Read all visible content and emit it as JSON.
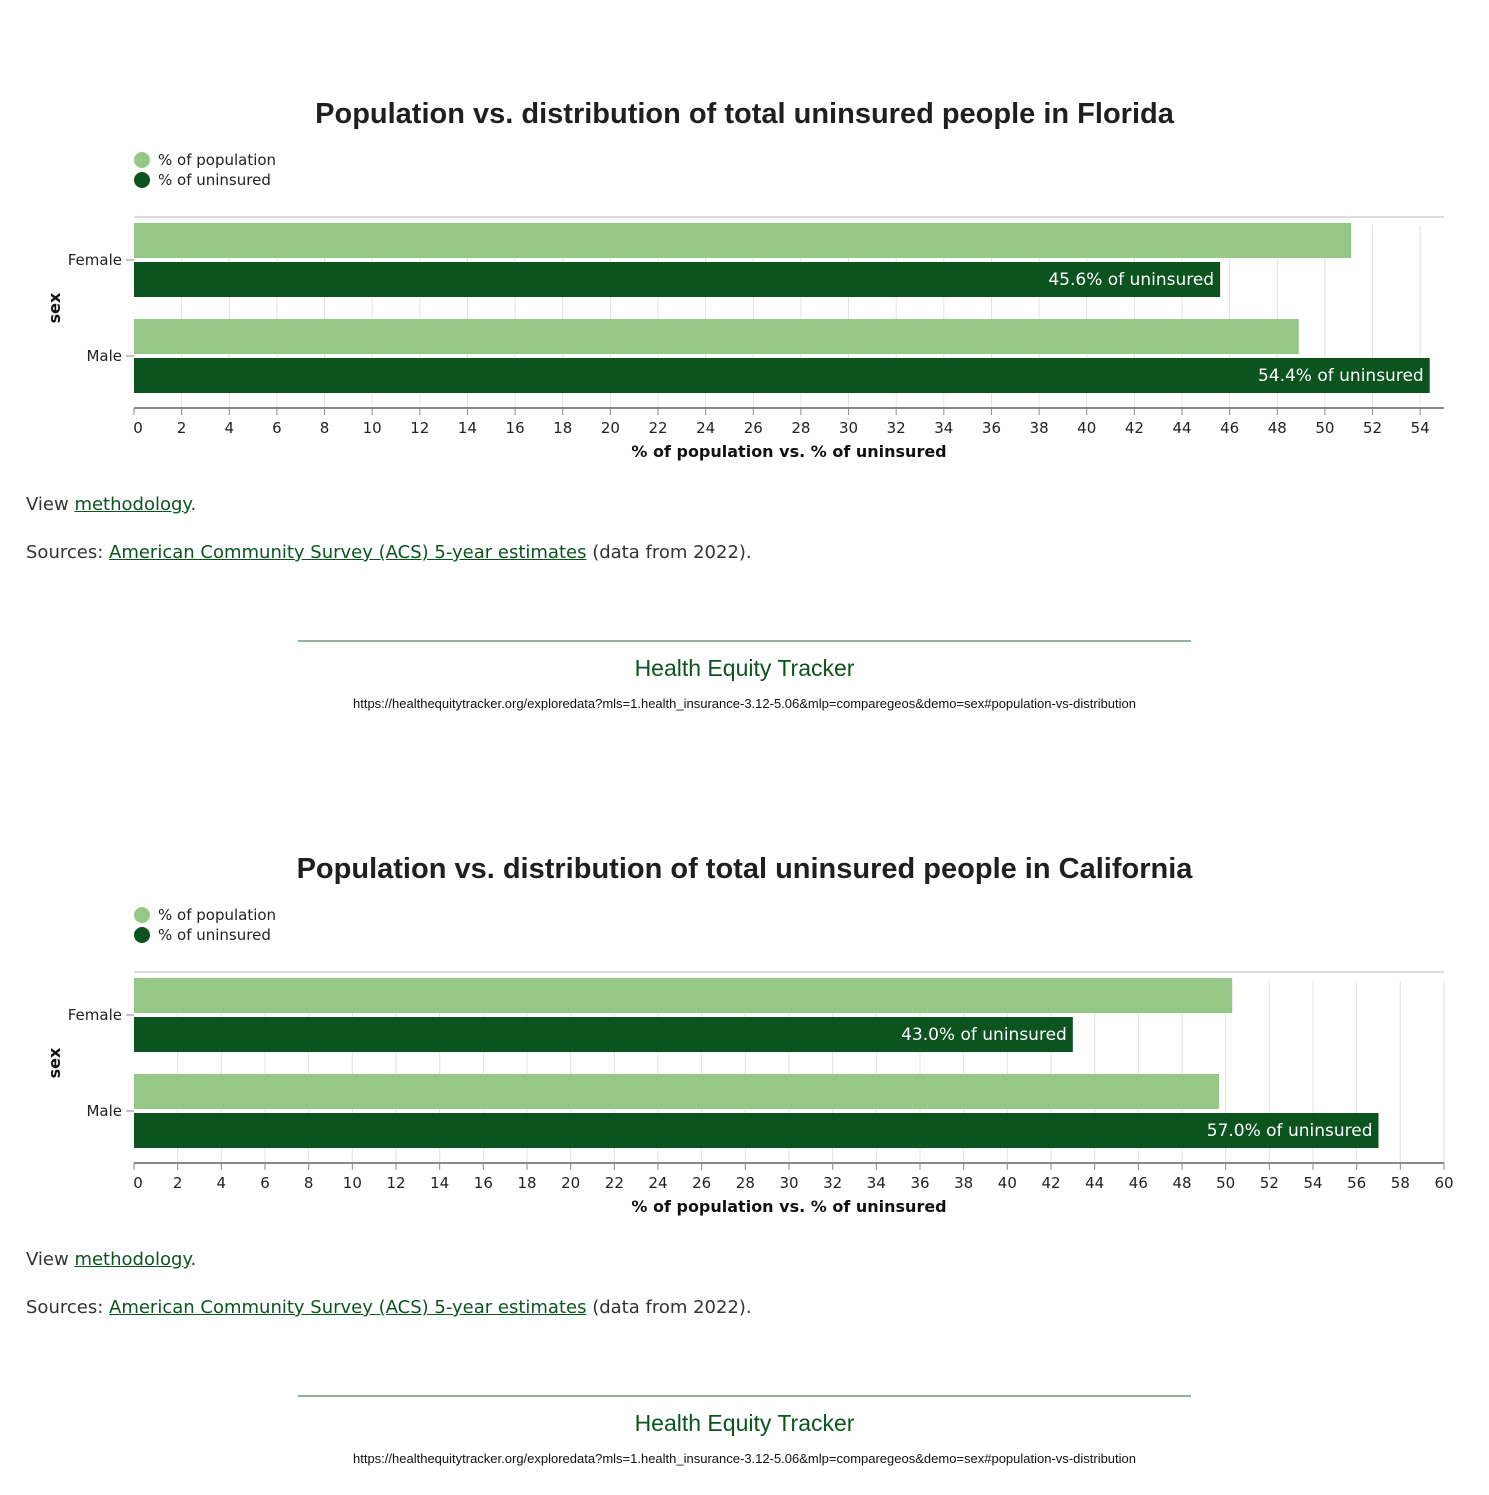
{
  "colors": {
    "population": "#95c786",
    "uninsured": "#0b5420",
    "text": "#222222",
    "link": "#0b5420"
  },
  "chart_data": [
    {
      "type": "bar",
      "orientation": "horizontal",
      "title": "Population vs. distribution of total uninsured people in Florida",
      "categories": [
        "Female",
        "Male"
      ],
      "ylabel": "sex",
      "xlabel": "% of population vs. % of uninsured",
      "xlim": [
        0,
        55
      ],
      "xticks": [
        0,
        2,
        4,
        6,
        8,
        10,
        12,
        14,
        16,
        18,
        20,
        22,
        24,
        26,
        28,
        30,
        32,
        34,
        36,
        38,
        40,
        42,
        44,
        46,
        48,
        50,
        52,
        54
      ],
      "grid": true,
      "legend_placement": "top-left",
      "series": [
        {
          "name": "% of population",
          "values": [
            51.1,
            48.9
          ],
          "color": "#95c786"
        },
        {
          "name": "% of uninsured",
          "values": [
            45.6,
            54.4
          ],
          "color": "#0b5420",
          "data_labels": [
            "45.6% of uninsured",
            "54.4% of uninsured"
          ]
        }
      ]
    },
    {
      "type": "bar",
      "orientation": "horizontal",
      "title": "Population vs. distribution of total uninsured people in California",
      "categories": [
        "Female",
        "Male"
      ],
      "ylabel": "sex",
      "xlabel": "% of population vs. % of uninsured",
      "xlim": [
        0,
        60
      ],
      "xticks": [
        0,
        2,
        4,
        6,
        8,
        10,
        12,
        14,
        16,
        18,
        20,
        22,
        24,
        26,
        28,
        30,
        32,
        34,
        36,
        38,
        40,
        42,
        44,
        46,
        48,
        50,
        52,
        54,
        56,
        58,
        60
      ],
      "grid": true,
      "legend_placement": "top-left",
      "series": [
        {
          "name": "% of population",
          "values": [
            50.3,
            49.7
          ],
          "color": "#95c786"
        },
        {
          "name": "% of uninsured",
          "values": [
            43.0,
            57.0
          ],
          "color": "#0b5420",
          "data_labels": [
            "43.0% of uninsured",
            "57.0% of uninsured"
          ]
        }
      ]
    }
  ],
  "footer": {
    "view_prefix": "View ",
    "methodology_link": "methodology",
    "view_suffix": ".",
    "sources_prefix": "Sources: ",
    "sources_link": "American Community Survey (ACS) 5-year estimates",
    "sources_suffix": " (data from 2022).",
    "brand": "Health Equity Tracker",
    "url": "https://healthequitytracker.org/exploredata?mls=1.health_insurance-3.12-5.06&mlp=comparegeos&demo=sex#population-vs-distribution"
  }
}
